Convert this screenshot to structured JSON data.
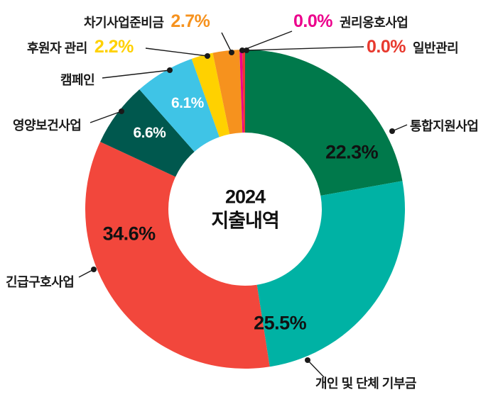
{
  "chart_data": {
    "type": "pie",
    "donut": true,
    "title": "2024 지출내역",
    "unit": "%",
    "legend_position": "outside-callouts",
    "center_label": {
      "line1": "2024",
      "line2": "지출내역"
    },
    "categories": [
      "통합지원사업",
      "개인 및 단체 기부금",
      "긴급구호사업",
      "영양보건사업",
      "캠페인",
      "후원자 관리",
      "차기사업준비금",
      "권리옹호사업",
      "일반관리"
    ],
    "values": [
      22.3,
      25.5,
      34.6,
      6.6,
      6.1,
      2.2,
      2.7,
      0.0,
      0.0
    ],
    "percent_labels": [
      "22.3%",
      "25.5%",
      "34.6%",
      "6.6%",
      "6.1%",
      "2.2%",
      "2.7%",
      "0.0%",
      "0.0%"
    ],
    "colors": [
      "#00794b",
      "#00b2a4",
      "#f2473c",
      "#00584e",
      "#3fc4e6",
      "#ffd100",
      "#f6921e",
      "#ec008c",
      "#e8392e"
    ]
  }
}
